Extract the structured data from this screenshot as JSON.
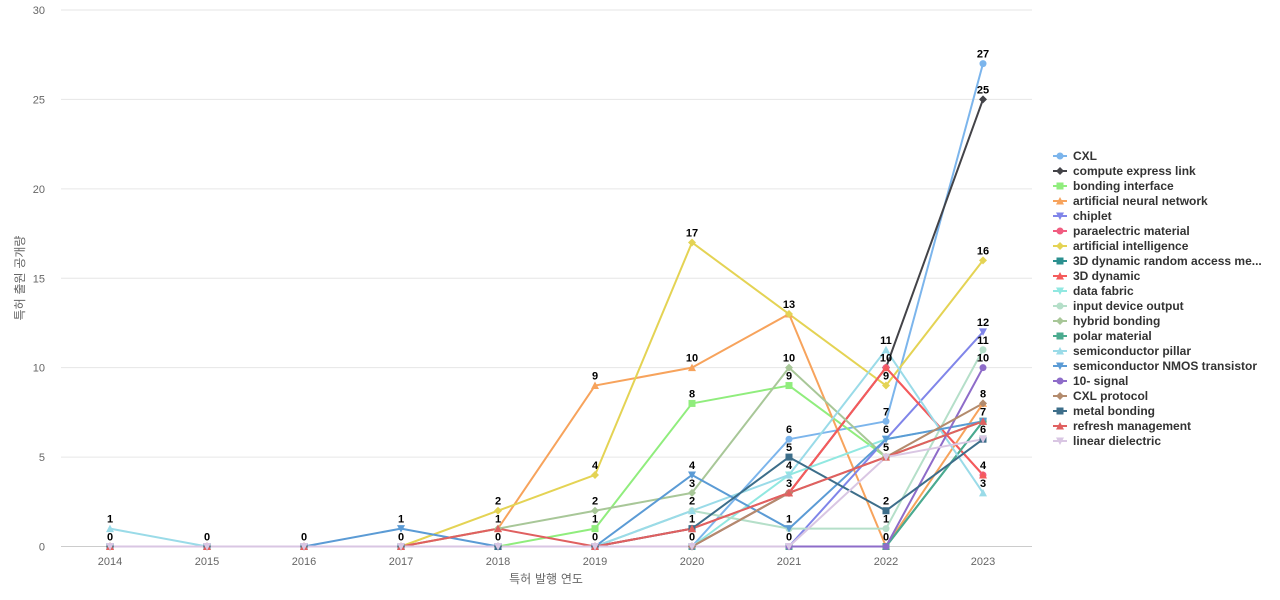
{
  "chart_data": {
    "type": "line",
    "title": "",
    "xlabel": "특허 발행 연도",
    "ylabel": "특허 출원 공개량",
    "ylim": [
      0,
      30
    ],
    "y_ticks": [
      0,
      5,
      10,
      15,
      20,
      25,
      30
    ],
    "x": [
      "2014",
      "2015",
      "2016",
      "2017",
      "2018",
      "2019",
      "2020",
      "2021",
      "2022",
      "2023"
    ],
    "grid": true,
    "legend_position": "right",
    "series": [
      {
        "name": "CXL",
        "color": "#7cb5ec",
        "marker": "circle",
        "values": [
          0,
          0,
          0,
          0,
          0,
          0,
          0,
          6,
          7,
          27
        ]
      },
      {
        "name": "compute express link",
        "color": "#434348",
        "marker": "diamond",
        "values": [
          0,
          0,
          0,
          0,
          0,
          0,
          0,
          3,
          10,
          25
        ]
      },
      {
        "name": "bonding interface",
        "color": "#90ed7d",
        "marker": "square",
        "values": [
          0,
          0,
          0,
          0,
          0,
          1,
          8,
          9,
          5,
          7
        ]
      },
      {
        "name": "artificial neural network",
        "color": "#f7a35c",
        "marker": "triangle",
        "values": [
          0,
          0,
          0,
          0,
          1,
          9,
          10,
          13,
          0,
          8
        ]
      },
      {
        "name": "chiplet",
        "color": "#8085e9",
        "marker": "triangle-down",
        "values": [
          0,
          0,
          0,
          0,
          0,
          0,
          0,
          0,
          6,
          12
        ]
      },
      {
        "name": "paraelectric material",
        "color": "#f15c80",
        "marker": "circle",
        "values": [
          0,
          0,
          0,
          0,
          0,
          0,
          0,
          3,
          10,
          4
        ]
      },
      {
        "name": "artificial intelligence",
        "color": "#e4d354",
        "marker": "diamond",
        "values": [
          0,
          0,
          0,
          0,
          2,
          4,
          17,
          13,
          9,
          16
        ]
      },
      {
        "name": "3D dynamic random access me...",
        "color": "#2b908f",
        "marker": "square",
        "values": [
          0,
          0,
          0,
          0,
          0,
          0,
          0,
          0,
          0,
          7
        ]
      },
      {
        "name": "3D dynamic",
        "color": "#f45b5b",
        "marker": "triangle",
        "values": [
          0,
          0,
          0,
          0,
          0,
          0,
          1,
          3,
          10,
          4
        ]
      },
      {
        "name": "data fabric",
        "color": "#91e8e1",
        "marker": "triangle-down",
        "values": [
          0,
          0,
          0,
          0,
          0,
          0,
          0,
          4,
          6,
          7
        ]
      },
      {
        "name": "input device output",
        "color": "#b5dfc9",
        "marker": "circle",
        "values": [
          0,
          0,
          0,
          0,
          0,
          0,
          2,
          1,
          1,
          11
        ]
      },
      {
        "name": "hybrid bonding",
        "color": "#a8c798",
        "marker": "diamond",
        "values": [
          0,
          0,
          0,
          0,
          1,
          2,
          3,
          10,
          5,
          7
        ]
      },
      {
        "name": "polar material",
        "color": "#4bab8f",
        "marker": "square",
        "values": [
          0,
          0,
          0,
          0,
          0,
          0,
          0,
          0,
          0,
          7
        ]
      },
      {
        "name": "semiconductor pillar",
        "color": "#9adbe8",
        "marker": "triangle",
        "values": [
          1,
          0,
          0,
          0,
          0,
          0,
          2,
          4,
          11,
          3
        ]
      },
      {
        "name": "semiconductor NMOS transistor",
        "color": "#5b9bd5",
        "marker": "triangle-down",
        "values": [
          0,
          0,
          0,
          1,
          0,
          0,
          4,
          1,
          6,
          7
        ]
      },
      {
        "name": "10- signal",
        "color": "#8e6cc9",
        "marker": "circle",
        "values": [
          0,
          0,
          0,
          0,
          0,
          0,
          0,
          0,
          0,
          10
        ]
      },
      {
        "name": "CXL protocol",
        "color": "#b38b6d",
        "marker": "diamond",
        "values": [
          0,
          0,
          0,
          0,
          0,
          0,
          0,
          3,
          5,
          8
        ]
      },
      {
        "name": "metal bonding",
        "color": "#3d6e8a",
        "marker": "square",
        "values": [
          0,
          0,
          0,
          0,
          0,
          0,
          1,
          5,
          2,
          6
        ]
      },
      {
        "name": "refresh management",
        "color": "#e06060",
        "marker": "triangle",
        "values": [
          0,
          0,
          0,
          0,
          1,
          0,
          1,
          3,
          5,
          7
        ]
      },
      {
        "name": "linear dielectric",
        "color": "#d9c6e3",
        "marker": "triangle-down",
        "values": [
          0,
          0,
          0,
          0,
          0,
          0,
          0,
          0,
          5,
          6
        ]
      }
    ],
    "data_labels": [
      {
        "x": "2014",
        "value": 1
      },
      {
        "x": "2014",
        "value": 0
      },
      {
        "x": "2015",
        "value": 0
      },
      {
        "x": "2016",
        "value": 0
      },
      {
        "x": "2017",
        "value": 1
      },
      {
        "x": "2017",
        "value": 0
      },
      {
        "x": "2018",
        "value": 2
      },
      {
        "x": "2018",
        "value": 1
      },
      {
        "x": "2018",
        "value": 0
      },
      {
        "x": "2019",
        "value": 9
      },
      {
        "x": "2019",
        "value": 4
      },
      {
        "x": "2019",
        "value": 2
      },
      {
        "x": "2019",
        "value": 1
      },
      {
        "x": "2019",
        "value": 0
      },
      {
        "x": "2020",
        "value": 17
      },
      {
        "x": "2020",
        "value": 10
      },
      {
        "x": "2020",
        "value": 8
      },
      {
        "x": "2020",
        "value": 4
      },
      {
        "x": "2020",
        "value": 3
      },
      {
        "x": "2020",
        "value": 2
      },
      {
        "x": "2020",
        "value": 1
      },
      {
        "x": "2020",
        "value": 0
      },
      {
        "x": "2021",
        "value": 13
      },
      {
        "x": "2021",
        "value": 10
      },
      {
        "x": "2021",
        "value": 9
      },
      {
        "x": "2021",
        "value": 6
      },
      {
        "x": "2021",
        "value": 5
      },
      {
        "x": "2021",
        "value": 4
      },
      {
        "x": "2021",
        "value": 3
      },
      {
        "x": "2021",
        "value": 1
      },
      {
        "x": "2021",
        "value": 0
      },
      {
        "x": "2022",
        "value": 11
      },
      {
        "x": "2022",
        "value": 10
      },
      {
        "x": "2022",
        "value": 9
      },
      {
        "x": "2022",
        "value": 7
      },
      {
        "x": "2022",
        "value": 6
      },
      {
        "x": "2022",
        "value": 5
      },
      {
        "x": "2022",
        "value": 2
      },
      {
        "x": "2022",
        "value": 1
      },
      {
        "x": "2022",
        "value": 0
      },
      {
        "x": "2023",
        "value": 27
      },
      {
        "x": "2023",
        "value": 25
      },
      {
        "x": "2023",
        "value": 16
      },
      {
        "x": "2023",
        "value": 12
      },
      {
        "x": "2023",
        "value": 11
      },
      {
        "x": "2023",
        "value": 10
      },
      {
        "x": "2023",
        "value": 8
      },
      {
        "x": "2023",
        "value": 7
      },
      {
        "x": "2023",
        "value": 6
      },
      {
        "x": "2023",
        "value": 4
      },
      {
        "x": "2023",
        "value": 3
      }
    ]
  }
}
